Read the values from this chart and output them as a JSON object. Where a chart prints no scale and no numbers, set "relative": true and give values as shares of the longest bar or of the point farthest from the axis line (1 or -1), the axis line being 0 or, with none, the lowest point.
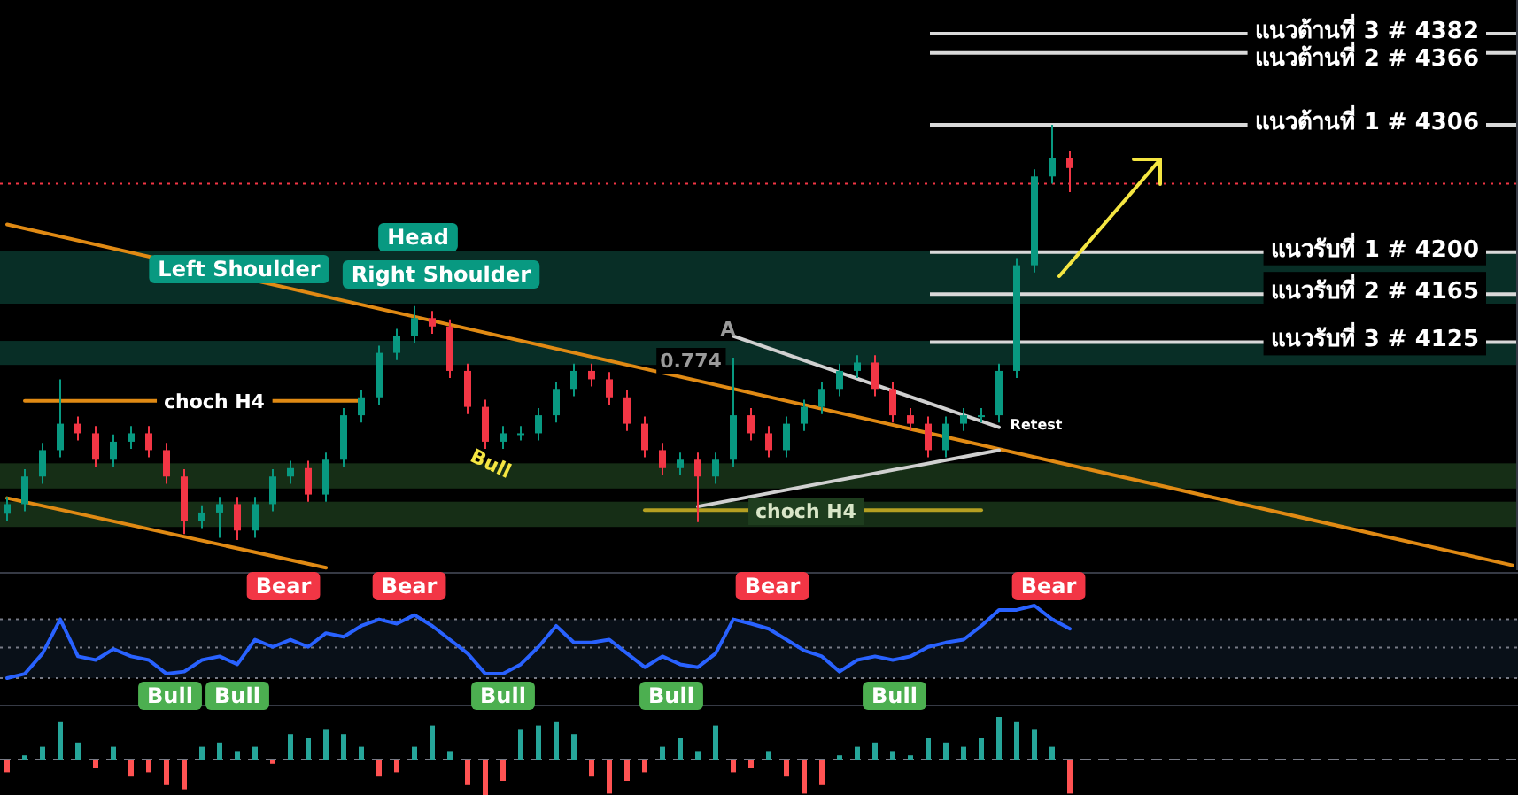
{
  "chart_data": [
    {
      "type": "candlestick",
      "ylim": [
        3935,
        4410
      ],
      "categories": [
        null,
        null,
        null,
        null,
        null,
        null,
        null,
        null,
        null,
        null,
        null,
        null,
        null,
        null,
        null,
        null,
        null,
        null,
        null,
        null,
        null,
        null,
        null,
        null,
        null,
        null,
        null,
        null,
        null,
        null,
        null,
        null,
        null,
        null,
        null,
        null,
        null,
        null,
        null,
        null,
        null,
        null,
        null,
        null,
        null,
        null,
        null,
        null,
        null,
        null,
        null,
        null,
        null,
        null,
        null,
        null,
        null,
        null,
        null,
        null,
        null,
        null,
        null,
        null,
        null,
        null,
        null,
        null,
        null,
        null,
        null,
        null,
        null,
        null,
        null,
        null,
        null,
        null,
        null,
        null,
        null,
        null,
        null,
        null,
        null,
        null
      ],
      "ohlc": [
        [
          3982,
          3996,
          3976,
          3990
        ],
        [
          3990,
          4019,
          3984,
          4013
        ],
        [
          4013,
          4041,
          4007,
          4035
        ],
        [
          4035,
          4094,
          4029,
          4057
        ],
        [
          4057,
          4063,
          4043,
          4049
        ],
        [
          4049,
          4055,
          4021,
          4027
        ],
        [
          4027,
          4048,
          4021,
          4042
        ],
        [
          4042,
          4055,
          4036,
          4049
        ],
        [
          4049,
          4055,
          4029,
          4035
        ],
        [
          4035,
          4041,
          4007,
          4013
        ],
        [
          4013,
          4019,
          3965,
          3976
        ],
        [
          3976,
          3989,
          3970,
          3983
        ],
        [
          3983,
          3996,
          3962,
          3990
        ],
        [
          3990,
          3996,
          3960,
          3968
        ],
        [
          3968,
          3996,
          3962,
          3990
        ],
        [
          3990,
          4019,
          3984,
          4013
        ],
        [
          4013,
          4026,
          4007,
          4020
        ],
        [
          4020,
          4026,
          3992,
          3998
        ],
        [
          3998,
          4033,
          3992,
          4027
        ],
        [
          4027,
          4070,
          4021,
          4064
        ],
        [
          4064,
          4085,
          4058,
          4079
        ],
        [
          4079,
          4122,
          4073,
          4116
        ],
        [
          4116,
          4136,
          4110,
          4130
        ],
        [
          4130,
          4155,
          4124,
          4145
        ],
        [
          4145,
          4151,
          4132,
          4138
        ],
        [
          4138,
          4144,
          4095,
          4101
        ],
        [
          4101,
          4107,
          4065,
          4071
        ],
        [
          4071,
          4077,
          4036,
          4042
        ],
        [
          4042,
          4055,
          4036,
          4049
        ],
        [
          4049,
          4055,
          4043,
          4049
        ],
        [
          4049,
          4070,
          4043,
          4064
        ],
        [
          4064,
          4092,
          4058,
          4086
        ],
        [
          4086,
          4107,
          4080,
          4101
        ],
        [
          4101,
          4107,
          4088,
          4094
        ],
        [
          4094,
          4100,
          4073,
          4079
        ],
        [
          4079,
          4085,
          4051,
          4057
        ],
        [
          4057,
          4063,
          4029,
          4035
        ],
        [
          4035,
          4041,
          4014,
          4020
        ],
        [
          4020,
          4033,
          4014,
          4027
        ],
        [
          4027,
          4033,
          3975,
          4013
        ],
        [
          4013,
          4033,
          4007,
          4027
        ],
        [
          4027,
          4112,
          4021,
          4064
        ],
        [
          4064,
          4070,
          4043,
          4049
        ],
        [
          4049,
          4055,
          4029,
          4035
        ],
        [
          4035,
          4063,
          4029,
          4057
        ],
        [
          4057,
          4077,
          4051,
          4071
        ],
        [
          4071,
          4092,
          4065,
          4086
        ],
        [
          4086,
          4107,
          4080,
          4101
        ],
        [
          4101,
          4114,
          4095,
          4108
        ],
        [
          4108,
          4114,
          4080,
          4086
        ],
        [
          4086,
          4092,
          4058,
          4064
        ],
        [
          4064,
          4070,
          4051,
          4057
        ],
        [
          4057,
          4063,
          4029,
          4035
        ],
        [
          4035,
          4063,
          4029,
          4057
        ],
        [
          4057,
          4070,
          4051,
          4064
        ],
        [
          4064,
          4070,
          4058,
          4064
        ],
        [
          4064,
          4107,
          4058,
          4101
        ],
        [
          4101,
          4195,
          4095,
          4189
        ],
        [
          4189,
          4269,
          4183,
          4263
        ],
        [
          4263,
          4306,
          4257,
          4278
        ],
        [
          4278,
          4284,
          4250,
          4270
        ],
        null,
        null,
        null,
        null,
        null,
        null,
        null,
        null,
        null,
        null,
        null,
        null,
        null,
        null,
        null,
        null,
        null,
        null,
        null,
        null,
        null,
        null,
        null,
        null,
        null
      ],
      "series": [
        {
          "type": "line",
          "color": "#e08a14",
          "values": [
            4223,
            null,
            null,
            null,
            null,
            null,
            null,
            null,
            null,
            null,
            null,
            null,
            null,
            null,
            null,
            null,
            null,
            null,
            null,
            null,
            null,
            null,
            null,
            null,
            null,
            null,
            null,
            null,
            null,
            null,
            null,
            null,
            null,
            null,
            null,
            null,
            null,
            null,
            null,
            null,
            null,
            null,
            null,
            null,
            null,
            null,
            null,
            null,
            null,
            null,
            null,
            null,
            null,
            null,
            null,
            null,
            null,
            null,
            null,
            null,
            null,
            null,
            null,
            null,
            null,
            null,
            null,
            null,
            null,
            null,
            null,
            null,
            null,
            null,
            null,
            null,
            null,
            null,
            null,
            null,
            null,
            null,
            null,
            null,
            null,
            3939
          ]
        },
        {
          "type": "line",
          "color": "#e08a14",
          "values": [
            3995,
            null,
            null,
            null,
            null,
            null,
            null,
            null,
            null,
            null,
            null,
            null,
            null,
            null,
            null,
            null,
            null,
            null,
            3937,
            null,
            null,
            null,
            null,
            null,
            null,
            null,
            null,
            null,
            null,
            null,
            null,
            null,
            null,
            null,
            null,
            null,
            null,
            null,
            null,
            null,
            null,
            null,
            null,
            null,
            null,
            null,
            null,
            null,
            null,
            null,
            null,
            null,
            null,
            null,
            null,
            null,
            null,
            null,
            null,
            null,
            null,
            null,
            null,
            null,
            null,
            null,
            null,
            null,
            null,
            null,
            null,
            null,
            null,
            null,
            null,
            null,
            null,
            null,
            null,
            null,
            null,
            null,
            null,
            null,
            null,
            null
          ]
        },
        {
          "type": "line",
          "color": "#d0d0d0",
          "values": [
            null,
            null,
            null,
            null,
            null,
            null,
            null,
            null,
            null,
            null,
            null,
            null,
            null,
            null,
            null,
            null,
            null,
            null,
            null,
            null,
            null,
            null,
            null,
            null,
            null,
            null,
            null,
            null,
            null,
            null,
            null,
            null,
            null,
            null,
            null,
            null,
            null,
            null,
            null,
            null,
            null,
            4130,
            null,
            null,
            null,
            null,
            null,
            null,
            null,
            null,
            null,
            null,
            null,
            null,
            null,
            null,
            4054,
            null,
            null,
            null,
            null,
            null,
            null,
            null,
            null,
            null,
            null,
            null,
            null,
            null,
            null,
            null,
            null,
            null,
            null,
            null,
            null,
            null,
            null,
            null,
            null,
            null,
            null,
            null,
            null,
            null
          ]
        },
        {
          "type": "line",
          "color": "#d0d0d0",
          "values": [
            null,
            null,
            null,
            null,
            null,
            null,
            null,
            null,
            null,
            null,
            null,
            null,
            null,
            null,
            null,
            null,
            null,
            null,
            null,
            null,
            null,
            null,
            null,
            null,
            null,
            null,
            null,
            null,
            null,
            null,
            null,
            null,
            null,
            null,
            null,
            null,
            null,
            null,
            null,
            3988,
            null,
            null,
            null,
            null,
            null,
            null,
            null,
            null,
            null,
            null,
            null,
            null,
            null,
            null,
            null,
            null,
            4035,
            null,
            null,
            null,
            null,
            null,
            null,
            null,
            null,
            null,
            null,
            null,
            null,
            null,
            null,
            null,
            null,
            null,
            null,
            null,
            null,
            null,
            null,
            null,
            null,
            null,
            null,
            null,
            null,
            null
          ]
        },
        {
          "type": "line",
          "color": "#e08a14",
          "values": [
            null,
            4076,
            null,
            null,
            null,
            null,
            null,
            null,
            null,
            null,
            null,
            null,
            null,
            null,
            null,
            null,
            null,
            null,
            null,
            null,
            4076,
            null,
            null,
            null,
            null,
            null,
            null,
            null,
            null,
            null,
            null,
            null,
            null,
            null,
            null,
            null,
            null,
            null,
            null,
            null,
            null,
            null,
            null,
            null,
            null,
            null,
            null,
            null,
            null,
            null,
            null,
            null,
            null,
            null,
            null,
            null,
            null,
            null,
            null,
            null,
            null,
            null,
            null,
            null,
            null,
            null,
            null,
            null,
            null,
            null,
            null,
            null,
            null,
            null,
            null,
            null,
            null,
            null,
            null,
            null,
            null,
            null,
            null,
            null,
            null,
            null
          ]
        },
        {
          "type": "line",
          "color": "#b5a022",
          "values": [
            null,
            null,
            null,
            null,
            null,
            null,
            null,
            null,
            null,
            null,
            null,
            null,
            null,
            null,
            null,
            null,
            null,
            null,
            null,
            null,
            null,
            null,
            null,
            null,
            null,
            null,
            null,
            null,
            null,
            null,
            null,
            null,
            null,
            null,
            null,
            null,
            3985,
            null,
            null,
            null,
            null,
            null,
            null,
            null,
            null,
            null,
            null,
            null,
            null,
            null,
            null,
            null,
            null,
            null,
            null,
            3985,
            null,
            null,
            null,
            null,
            null,
            null,
            null,
            null,
            null,
            null,
            null,
            null,
            null,
            null,
            null,
            null,
            null,
            null,
            null,
            null,
            null,
            null,
            null,
            null,
            null,
            null,
            null,
            null,
            null,
            null
          ]
        }
      ],
      "bands": [
        {
          "axis": "y",
          "from": 4157,
          "to": 4201,
          "color": "#0b3d33"
        },
        {
          "axis": "y",
          "from": 4106,
          "to": 4126,
          "color": "#0b3d33"
        },
        {
          "axis": "y",
          "from": 4003,
          "to": 4024,
          "color": "#1e3d1e"
        },
        {
          "axis": "y",
          "from": 3971,
          "to": 3992,
          "color": "#1e3d1e"
        }
      ],
      "ref_lines": [
        {
          "axis": "y",
          "value": 4382,
          "label": "แนวต้านที่ 3 # 4382",
          "color": "#d9d9d9"
        },
        {
          "axis": "y",
          "value": 4366,
          "label": "แนวต้านที่ 2 # 4366",
          "color": "#d9d9d9"
        },
        {
          "axis": "y",
          "value": 4306,
          "label": "แนวต้านที่ 1 # 4306",
          "color": "#d9d9d9"
        },
        {
          "axis": "y",
          "value": 4257,
          "label": null,
          "color": "#f23645",
          "line_style": "dotted"
        },
        {
          "axis": "y",
          "value": 4200,
          "label": "แนวรับที่ 1 # 4200",
          "color": "#d9d9d9"
        },
        {
          "axis": "y",
          "value": 4165,
          "label": "แนวรับที่ 2 # 4165",
          "color": "#d9d9d9"
        },
        {
          "axis": "y",
          "value": 4125,
          "label": "แนวรับที่ 3 # 4125",
          "color": "#d9d9d9"
        }
      ],
      "annotations": [
        "Left Shoulder",
        "Head",
        "Right Shoulder",
        "choch H4",
        "Bull",
        "A",
        "0.774",
        "Retest",
        "choch H4"
      ]
    },
    {
      "type": "line",
      "relative": true,
      "categories": [
        null,
        null,
        null,
        null,
        null,
        null,
        null,
        null,
        null,
        null,
        null,
        null,
        null,
        null,
        null,
        null,
        null,
        null,
        null,
        null,
        null,
        null,
        null,
        null,
        null,
        null,
        null,
        null,
        null,
        null,
        null,
        null,
        null,
        null,
        null,
        null,
        null,
        null,
        null,
        null,
        null,
        null,
        null,
        null,
        null,
        null,
        null,
        null,
        null,
        null,
        null,
        null,
        null,
        null,
        null,
        null,
        null,
        null,
        null,
        null,
        null
      ],
      "series": [
        {
          "color": "#2962ff",
          "values": [
            0,
            0.06,
            0.34,
            0.81,
            0.3,
            0.25,
            0.4,
            0.3,
            0.25,
            0.06,
            0.09,
            0.25,
            0.3,
            0.19,
            0.53,
            0.43,
            0.53,
            0.43,
            0.62,
            0.57,
            0.72,
            0.81,
            0.75,
            0.87,
            0.72,
            0.53,
            0.34,
            0.06,
            0.06,
            0.19,
            0.43,
            0.72,
            0.49,
            0.49,
            0.53,
            0.34,
            0.15,
            0.3,
            0.19,
            0.15,
            0.34,
            0.81,
            0.75,
            0.68,
            0.53,
            0.38,
            0.3,
            0.09,
            0.25,
            0.3,
            0.25,
            0.3,
            0.43,
            0.49,
            0.53,
            0.72,
            0.94,
            0.94,
            1,
            0.81,
            0.68
          ]
        }
      ],
      "bands": [
        {
          "axis": "y",
          "from": 0,
          "to": 0.81,
          "color": "#0c1520"
        }
      ],
      "ref_lines": [
        {
          "axis": "y",
          "value": 0,
          "color": "#787b86",
          "line_style": "dotted"
        },
        {
          "axis": "y",
          "value": 0.42,
          "color": "#787b86",
          "line_style": "dotted"
        },
        {
          "axis": "y",
          "value": 0.81,
          "color": "#787b86",
          "line_style": "dotted"
        }
      ],
      "annotations": [
        "Bull",
        "Bull",
        "Bear",
        "Bear",
        "Bull",
        "Bull",
        "Bear",
        "Bull",
        "Bear"
      ]
    },
    {
      "type": "bar",
      "relative": true,
      "categories": [
        null,
        null,
        null,
        null,
        null,
        null,
        null,
        null,
        null,
        null,
        null,
        null,
        null,
        null,
        null,
        null,
        null,
        null,
        null,
        null,
        null,
        null,
        null,
        null,
        null,
        null,
        null,
        null,
        null,
        null,
        null,
        null,
        null,
        null,
        null,
        null,
        null,
        null,
        null,
        null,
        null,
        null,
        null,
        null,
        null,
        null,
        null,
        null,
        null,
        null,
        null,
        null,
        null,
        null,
        null,
        null,
        null,
        null,
        null,
        null,
        null
      ],
      "values": [
        -0.3,
        0.1,
        0.3,
        0.9,
        0.4,
        -0.2,
        0.3,
        -0.4,
        -0.3,
        -0.6,
        -0.7,
        0.3,
        0.4,
        0.2,
        0.3,
        -0.1,
        0.6,
        0.5,
        0.7,
        0.6,
        0.3,
        -0.4,
        -0.3,
        0.3,
        0.8,
        0.2,
        -0.6,
        -0.9,
        -0.5,
        0.7,
        0.8,
        0.9,
        0.6,
        -0.4,
        -0.8,
        -0.5,
        -0.3,
        0.3,
        0.5,
        0.2,
        0.8,
        -0.3,
        -0.2,
        0.2,
        -0.4,
        -0.8,
        -0.6,
        0.1,
        0.3,
        0.4,
        0.2,
        0.1,
        0.5,
        0.4,
        0.3,
        0.5,
        1.0,
        0.9,
        0.7,
        0.3,
        -0.8
      ],
      "colors": [
        "#ff5252",
        "#26a69a",
        "#26a69a",
        "#26a69a",
        "#26a69a",
        "#ff5252",
        "#26a69a",
        "#ff5252",
        "#ff5252",
        "#ff5252",
        "#ff5252",
        "#26a69a",
        "#26a69a",
        "#26a69a",
        "#26a69a",
        "#ff5252",
        "#26a69a",
        "#26a69a",
        "#26a69a",
        "#26a69a",
        "#26a69a",
        "#ff5252",
        "#ff5252",
        "#26a69a",
        "#26a69a",
        "#26a69a",
        "#ff5252",
        "#ff5252",
        "#ff5252",
        "#26a69a",
        "#26a69a",
        "#26a69a",
        "#26a69a",
        "#ff5252",
        "#ff5252",
        "#ff5252",
        "#ff5252",
        "#26a69a",
        "#26a69a",
        "#26a69a",
        "#26a69a",
        "#ff5252",
        "#ff5252",
        "#26a69a",
        "#ff5252",
        "#ff5252",
        "#ff5252",
        "#26a69a",
        "#26a69a",
        "#26a69a",
        "#26a69a",
        "#26a69a",
        "#26a69a",
        "#26a69a",
        "#26a69a",
        "#26a69a",
        "#26a69a",
        "#26a69a",
        "#26a69a",
        "#26a69a",
        "#ff5252"
      ],
      "ref_lines": [
        {
          "axis": "y",
          "value": 0,
          "color": "#787b86",
          "line_style": "dashed"
        }
      ]
    }
  ]
}
